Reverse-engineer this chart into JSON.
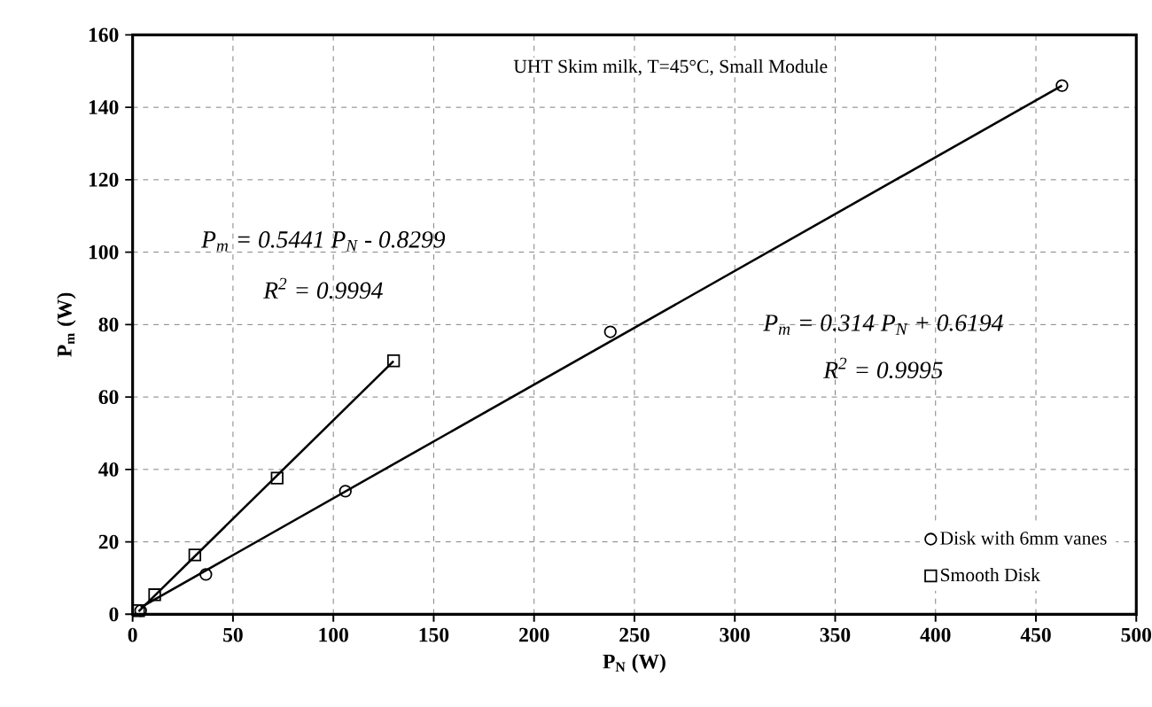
{
  "chart_data": {
    "type": "scatter",
    "title": "UHT Skim milk, T=45°C, Small Module",
    "xlabel": "P$_{N}$ (W)",
    "ylabel": "P$_{m}$ (W)",
    "xlim": [
      0,
      500
    ],
    "ylim": [
      0,
      160
    ],
    "xticks": [
      0,
      50,
      100,
      150,
      200,
      250,
      300,
      350,
      400,
      450,
      500
    ],
    "yticks": [
      0,
      20,
      40,
      60,
      80,
      100,
      120,
      140,
      160
    ],
    "grid": true,
    "legend": "bottom right",
    "series": [
      {
        "name": "Disk with 6mm vanes",
        "marker": "circle",
        "color": "#000000",
        "x": [
          4,
          36.5,
          106,
          238,
          463
        ],
        "values": [
          1,
          11,
          34,
          78,
          146
        ]
      },
      {
        "name": "Smooth Disk",
        "marker": "square",
        "color": "#000000",
        "x": [
          3,
          11,
          31,
          72,
          130
        ],
        "values": [
          1,
          5.4,
          16.4,
          37.6,
          70
        ]
      },
      {
        "type": "line",
        "line_style": "solid",
        "color": "#000000",
        "x": [
          4,
          463
        ],
        "values": [
          1.9,
          146
        ]
      },
      {
        "type": "line",
        "line_style": "solid",
        "color": "#000000",
        "x": [
          3,
          130
        ],
        "values": [
          0.8,
          69.9
        ]
      }
    ],
    "annotations": [
      "P$_{m}$ = 0.5441 P$_{N}$ - 0.8299",
      "R$^{2}$ = 0.9994",
      "P$_{m}$ = 0.314 P$_{N}$ + 0.6194",
      "R$^{2}$ = 0.9995"
    ]
  }
}
